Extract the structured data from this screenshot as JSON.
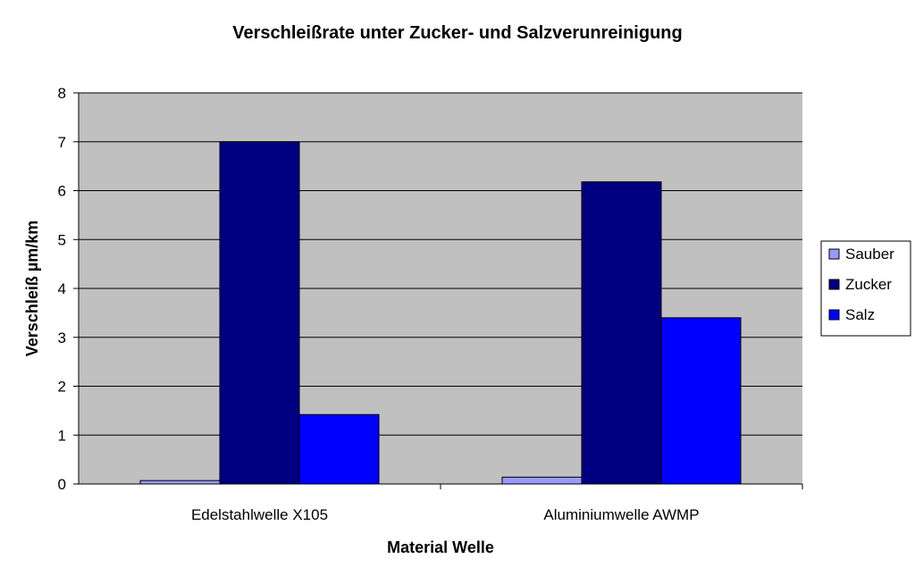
{
  "chart_data": {
    "type": "bar",
    "title": "Verschleißrate unter Zucker- und Salzverunreinigung",
    "xlabel": "Material Welle",
    "ylabel": "Verschleiß µm/km",
    "categories": [
      "Edelstahlwelle X105",
      "Aluminiumwelle AWMP"
    ],
    "series": [
      {
        "name": "Sauber",
        "values": [
          0.07,
          0.14
        ],
        "color": "#9999ff"
      },
      {
        "name": "Zucker",
        "values": [
          7.0,
          6.18
        ],
        "color": "#000080"
      },
      {
        "name": "Salz",
        "values": [
          1.42,
          3.4
        ],
        "color": "#0000ff"
      }
    ],
    "ylim": [
      0,
      8
    ],
    "yticks": [
      "0",
      "1",
      "2",
      "3",
      "4",
      "5",
      "6",
      "7",
      "8"
    ],
    "grid": true,
    "plot_background": "#c0c0c0",
    "legend_position": "right"
  }
}
